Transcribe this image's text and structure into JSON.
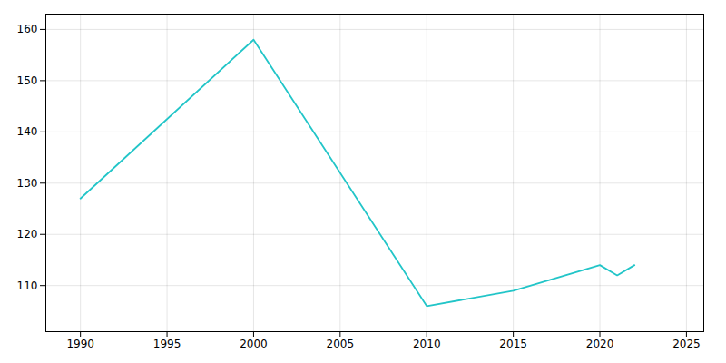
{
  "chart_data": {
    "type": "line",
    "x": [
      1990,
      2000,
      2010,
      2015,
      2020,
      2021,
      2022
    ],
    "values": [
      127,
      158,
      106,
      109,
      114,
      112,
      114
    ],
    "color": "#22C5C8",
    "xlim": [
      1988,
      2026
    ],
    "ylim": [
      101,
      163
    ],
    "xticks": [
      1990,
      1995,
      2000,
      2005,
      2010,
      2015,
      2020,
      2025
    ],
    "yticks": [
      110,
      120,
      130,
      140,
      150,
      160
    ],
    "grid": true
  }
}
